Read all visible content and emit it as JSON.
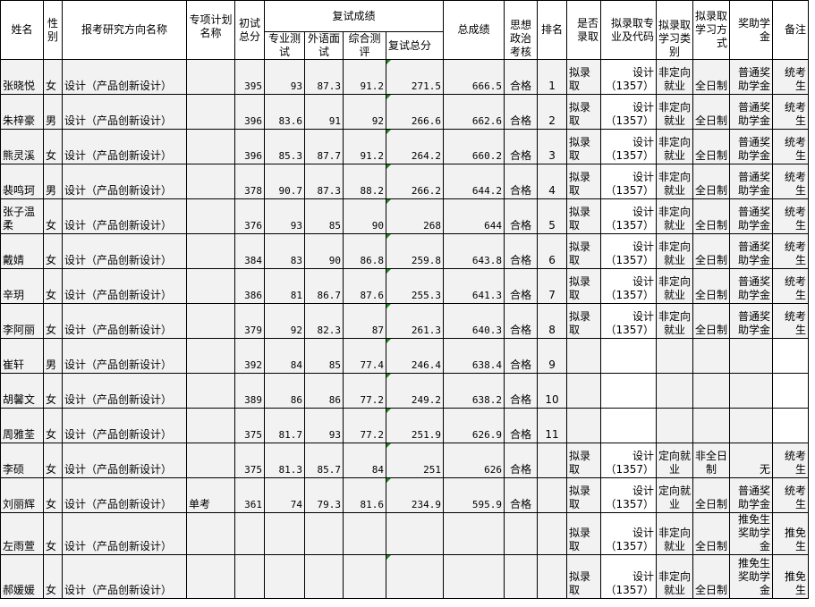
{
  "headers": {
    "name": "姓名",
    "gender": "性别",
    "direction": "报考研究方向名称",
    "special_plan": "专项计划名称",
    "prelim_total": "初试总分",
    "retest_group": "复试成绩",
    "retest_major": "专业测试",
    "retest_language": "外语面试",
    "retest_comprehensive": "综合测评",
    "retest_total": "复试总分",
    "total": "总成绩",
    "political": "思想政治考核",
    "rank": "排名",
    "admit": "是否录取",
    "major_code": "拟录取专业及代码",
    "study_type": "拟录取学习类别",
    "study_mode": "拟录取学习方式",
    "scholarship": "奖助学金",
    "remarks": "备注"
  },
  "rows": [
    [
      "张晓悦",
      "女",
      "设计（产品创新设计）",
      "",
      "395",
      "93",
      "87.3",
      "91.2",
      "271.5",
      "666.5",
      "合格",
      "1",
      "拟录取",
      "设计（1357）",
      "非定向就业",
      "全日制",
      "普通奖助学金",
      "统考生"
    ],
    [
      "朱梓豪",
      "男",
      "设计（产品创新设计）",
      "",
      "396",
      "83.6",
      "91",
      "92",
      "266.6",
      "662.6",
      "合格",
      "2",
      "拟录取",
      "设计（1357）",
      "非定向就业",
      "全日制",
      "普通奖助学金",
      "统考生"
    ],
    [
      "熊灵溪",
      "女",
      "设计（产品创新设计）",
      "",
      "396",
      "85.3",
      "87.7",
      "91.2",
      "264.2",
      "660.2",
      "合格",
      "3",
      "拟录取",
      "设计（1357）",
      "非定向就业",
      "全日制",
      "普通奖助学金",
      "统考生"
    ],
    [
      "裴鸣珂",
      "男",
      "设计（产品创新设计）",
      "",
      "378",
      "90.7",
      "87.3",
      "88.2",
      "266.2",
      "644.2",
      "合格",
      "4",
      "拟录取",
      "设计（1357）",
      "非定向就业",
      "全日制",
      "普通奖助学金",
      "统考生"
    ],
    [
      "张子温柔",
      "女",
      "设计（产品创新设计）",
      "",
      "376",
      "93",
      "85",
      "90",
      "268",
      "644",
      "合格",
      "5",
      "拟录取",
      "设计（1357）",
      "非定向就业",
      "全日制",
      "普通奖助学金",
      "统考生"
    ],
    [
      "戴婧",
      "女",
      "设计（产品创新设计）",
      "",
      "384",
      "83",
      "90",
      "86.8",
      "259.8",
      "643.8",
      "合格",
      "6",
      "拟录取",
      "设计（1357）",
      "非定向就业",
      "全日制",
      "普通奖助学金",
      "统考生"
    ],
    [
      "辛玥",
      "女",
      "设计（产品创新设计）",
      "",
      "386",
      "81",
      "86.7",
      "87.6",
      "255.3",
      "641.3",
      "合格",
      "7",
      "拟录取",
      "设计（1357）",
      "非定向就业",
      "全日制",
      "普通奖助学金",
      "统考生"
    ],
    [
      "李阿丽",
      "女",
      "设计（产品创新设计）",
      "",
      "379",
      "92",
      "82.3",
      "87",
      "261.3",
      "640.3",
      "合格",
      "8",
      "拟录取",
      "设计（1357）",
      "非定向就业",
      "全日制",
      "普通奖助学金",
      "统考生"
    ],
    [
      "崔轩",
      "男",
      "设计（产品创新设计）",
      "",
      "392",
      "84",
      "85",
      "77.4",
      "246.4",
      "638.4",
      "合格",
      "9",
      "",
      "",
      "",
      "",
      "",
      ""
    ],
    [
      "胡馨文",
      "女",
      "设计（产品创新设计）",
      "",
      "389",
      "86",
      "86",
      "77.2",
      "249.2",
      "638.2",
      "合格",
      "10",
      "",
      "",
      "",
      "",
      "",
      ""
    ],
    [
      "周雅荃",
      "女",
      "设计（产品创新设计）",
      "",
      "375",
      "81.7",
      "93",
      "77.2",
      "251.9",
      "626.9",
      "合格",
      "11",
      "",
      "",
      "",
      "",
      "",
      ""
    ],
    [
      "李硕",
      "女",
      "设计（产品创新设计）",
      "",
      "375",
      "81.3",
      "85.7",
      "84",
      "251",
      "626",
      "合格",
      "",
      "拟录取",
      "设计（1357）",
      "定向就业",
      "非全日制",
      "无",
      "统考生"
    ],
    [
      "刘丽辉",
      "女",
      "设计（产品创新设计）",
      "单考",
      "361",
      "74",
      "79.3",
      "81.6",
      "234.9",
      "595.9",
      "合格",
      "",
      "拟录取",
      "设计（1357）",
      "定向就业",
      "全日制",
      "普通奖助学金",
      "统考生"
    ],
    [
      "左雨萱",
      "女",
      "设计（产品创新设计）",
      "",
      "",
      "",
      "",
      "",
      "",
      "",
      "",
      "",
      "拟录取",
      "设计（1357）",
      "非定向就业",
      "全日制",
      "推免生奖助学金",
      "推免生"
    ],
    [
      "郝媛媛",
      "女",
      "设计（产品创新设计）",
      "",
      "",
      "",
      "",
      "",
      "",
      "",
      "",
      "",
      "拟录取",
      "设计（1357）",
      "非定向就业",
      "全日制",
      "推免生奖助学金",
      "推免生"
    ]
  ],
  "colors": {
    "cell_bg": "#f2f2f2",
    "header_bg": "#ffffff",
    "marker": "#1a8a1a"
  }
}
